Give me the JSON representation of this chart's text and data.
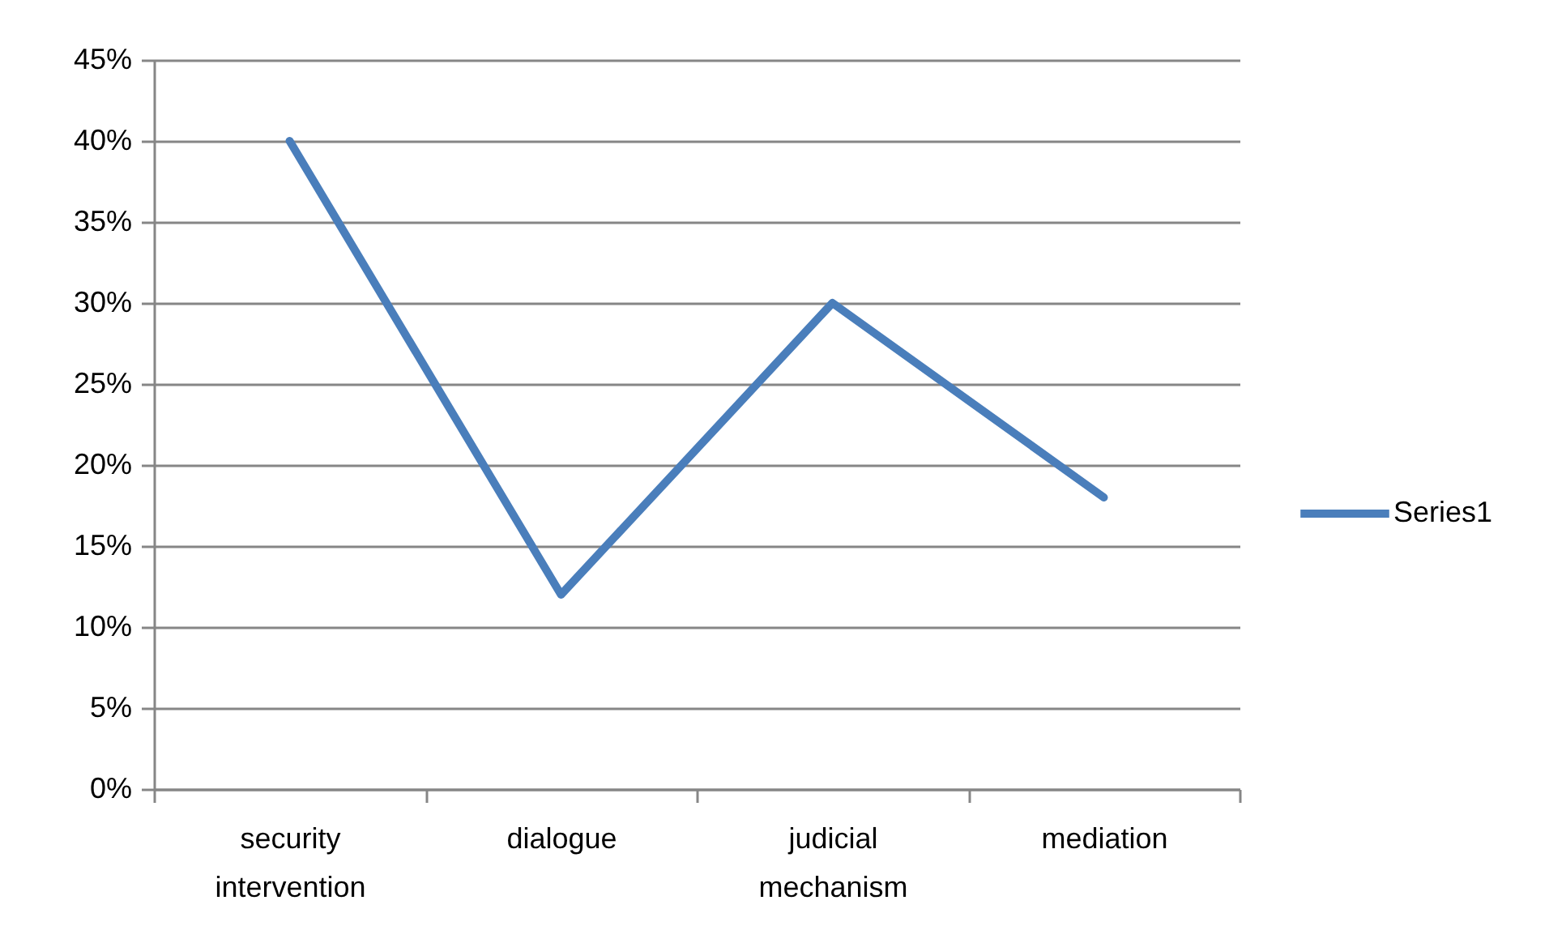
{
  "chart_data": {
    "type": "line",
    "categories": [
      "security intervention",
      "dialogue",
      "judicial mechanism",
      "mediation"
    ],
    "series": [
      {
        "name": "Series1",
        "color": "#4a7ebb",
        "values": [
          40,
          12,
          30,
          18
        ]
      }
    ],
    "ylim": [
      0,
      45
    ],
    "yticks": [
      {
        "value": 0,
        "label": "0%"
      },
      {
        "value": 5,
        "label": "5%"
      },
      {
        "value": 10,
        "label": "10%"
      },
      {
        "value": 15,
        "label": "15%"
      },
      {
        "value": 20,
        "label": "20%"
      },
      {
        "value": 25,
        "label": "25%"
      },
      {
        "value": 30,
        "label": "30%"
      },
      {
        "value": 35,
        "label": "35%"
      },
      {
        "value": 40,
        "label": "40%"
      },
      {
        "value": 45,
        "label": "45%"
      }
    ],
    "grid": "y",
    "legend": "right"
  }
}
